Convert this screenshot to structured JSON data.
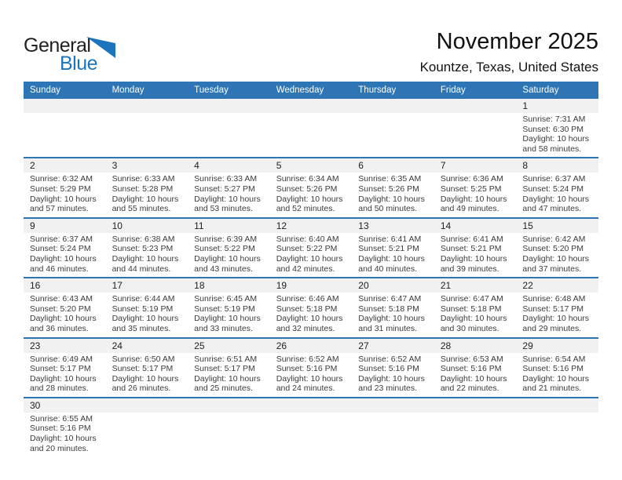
{
  "logo": {
    "word_general": "General",
    "word_blue": "Blue"
  },
  "header": {
    "title": "November 2025",
    "subtitle": "Kountze, Texas, United States"
  },
  "colors": {
    "header_blue": "#2E75B6",
    "separator_blue": "#2E75B6",
    "band_gray": "#F1F1F1",
    "logo_blue": "#1C75BC"
  },
  "calendar": {
    "day_headers": [
      "Sunday",
      "Monday",
      "Tuesday",
      "Wednesday",
      "Thursday",
      "Friday",
      "Saturday"
    ],
    "weeks": [
      [
        null,
        null,
        null,
        null,
        null,
        null,
        {
          "day": "1",
          "sunrise": "Sunrise: 7:31 AM",
          "sunset": "Sunset: 6:30 PM",
          "daylight": "Daylight: 10 hours and 58 minutes."
        }
      ],
      [
        {
          "day": "2",
          "sunrise": "Sunrise: 6:32 AM",
          "sunset": "Sunset: 5:29 PM",
          "daylight": "Daylight: 10 hours and 57 minutes."
        },
        {
          "day": "3",
          "sunrise": "Sunrise: 6:33 AM",
          "sunset": "Sunset: 5:28 PM",
          "daylight": "Daylight: 10 hours and 55 minutes."
        },
        {
          "day": "4",
          "sunrise": "Sunrise: 6:33 AM",
          "sunset": "Sunset: 5:27 PM",
          "daylight": "Daylight: 10 hours and 53 minutes."
        },
        {
          "day": "5",
          "sunrise": "Sunrise: 6:34 AM",
          "sunset": "Sunset: 5:26 PM",
          "daylight": "Daylight: 10 hours and 52 minutes."
        },
        {
          "day": "6",
          "sunrise": "Sunrise: 6:35 AM",
          "sunset": "Sunset: 5:26 PM",
          "daylight": "Daylight: 10 hours and 50 minutes."
        },
        {
          "day": "7",
          "sunrise": "Sunrise: 6:36 AM",
          "sunset": "Sunset: 5:25 PM",
          "daylight": "Daylight: 10 hours and 49 minutes."
        },
        {
          "day": "8",
          "sunrise": "Sunrise: 6:37 AM",
          "sunset": "Sunset: 5:24 PM",
          "daylight": "Daylight: 10 hours and 47 minutes."
        }
      ],
      [
        {
          "day": "9",
          "sunrise": "Sunrise: 6:37 AM",
          "sunset": "Sunset: 5:24 PM",
          "daylight": "Daylight: 10 hours and 46 minutes."
        },
        {
          "day": "10",
          "sunrise": "Sunrise: 6:38 AM",
          "sunset": "Sunset: 5:23 PM",
          "daylight": "Daylight: 10 hours and 44 minutes."
        },
        {
          "day": "11",
          "sunrise": "Sunrise: 6:39 AM",
          "sunset": "Sunset: 5:22 PM",
          "daylight": "Daylight: 10 hours and 43 minutes."
        },
        {
          "day": "12",
          "sunrise": "Sunrise: 6:40 AM",
          "sunset": "Sunset: 5:22 PM",
          "daylight": "Daylight: 10 hours and 42 minutes."
        },
        {
          "day": "13",
          "sunrise": "Sunrise: 6:41 AM",
          "sunset": "Sunset: 5:21 PM",
          "daylight": "Daylight: 10 hours and 40 minutes."
        },
        {
          "day": "14",
          "sunrise": "Sunrise: 6:41 AM",
          "sunset": "Sunset: 5:21 PM",
          "daylight": "Daylight: 10 hours and 39 minutes."
        },
        {
          "day": "15",
          "sunrise": "Sunrise: 6:42 AM",
          "sunset": "Sunset: 5:20 PM",
          "daylight": "Daylight: 10 hours and 37 minutes."
        }
      ],
      [
        {
          "day": "16",
          "sunrise": "Sunrise: 6:43 AM",
          "sunset": "Sunset: 5:20 PM",
          "daylight": "Daylight: 10 hours and 36 minutes."
        },
        {
          "day": "17",
          "sunrise": "Sunrise: 6:44 AM",
          "sunset": "Sunset: 5:19 PM",
          "daylight": "Daylight: 10 hours and 35 minutes."
        },
        {
          "day": "18",
          "sunrise": "Sunrise: 6:45 AM",
          "sunset": "Sunset: 5:19 PM",
          "daylight": "Daylight: 10 hours and 33 minutes."
        },
        {
          "day": "19",
          "sunrise": "Sunrise: 6:46 AM",
          "sunset": "Sunset: 5:18 PM",
          "daylight": "Daylight: 10 hours and 32 minutes."
        },
        {
          "day": "20",
          "sunrise": "Sunrise: 6:47 AM",
          "sunset": "Sunset: 5:18 PM",
          "daylight": "Daylight: 10 hours and 31 minutes."
        },
        {
          "day": "21",
          "sunrise": "Sunrise: 6:47 AM",
          "sunset": "Sunset: 5:18 PM",
          "daylight": "Daylight: 10 hours and 30 minutes."
        },
        {
          "day": "22",
          "sunrise": "Sunrise: 6:48 AM",
          "sunset": "Sunset: 5:17 PM",
          "daylight": "Daylight: 10 hours and 29 minutes."
        }
      ],
      [
        {
          "day": "23",
          "sunrise": "Sunrise: 6:49 AM",
          "sunset": "Sunset: 5:17 PM",
          "daylight": "Daylight: 10 hours and 28 minutes."
        },
        {
          "day": "24",
          "sunrise": "Sunrise: 6:50 AM",
          "sunset": "Sunset: 5:17 PM",
          "daylight": "Daylight: 10 hours and 26 minutes."
        },
        {
          "day": "25",
          "sunrise": "Sunrise: 6:51 AM",
          "sunset": "Sunset: 5:17 PM",
          "daylight": "Daylight: 10 hours and 25 minutes."
        },
        {
          "day": "26",
          "sunrise": "Sunrise: 6:52 AM",
          "sunset": "Sunset: 5:16 PM",
          "daylight": "Daylight: 10 hours and 24 minutes."
        },
        {
          "day": "27",
          "sunrise": "Sunrise: 6:52 AM",
          "sunset": "Sunset: 5:16 PM",
          "daylight": "Daylight: 10 hours and 23 minutes."
        },
        {
          "day": "28",
          "sunrise": "Sunrise: 6:53 AM",
          "sunset": "Sunset: 5:16 PM",
          "daylight": "Daylight: 10 hours and 22 minutes."
        },
        {
          "day": "29",
          "sunrise": "Sunrise: 6:54 AM",
          "sunset": "Sunset: 5:16 PM",
          "daylight": "Daylight: 10 hours and 21 minutes."
        }
      ],
      [
        {
          "day": "30",
          "sunrise": "Sunrise: 6:55 AM",
          "sunset": "Sunset: 5:16 PM",
          "daylight": "Daylight: 10 hours and 20 minutes."
        },
        null,
        null,
        null,
        null,
        null,
        null
      ]
    ]
  }
}
